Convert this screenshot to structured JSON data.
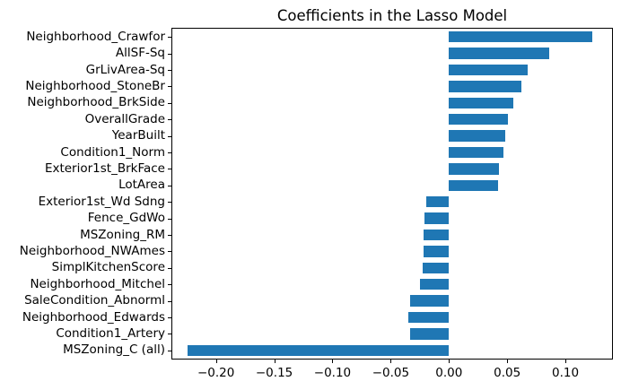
{
  "figure": {
    "background": "#ffffff"
  },
  "chart_data": {
    "type": "bar",
    "orientation": "horizontal",
    "title": "Coefficients in the Lasso Model",
    "categories": [
      "Neighborhood_Crawfor",
      "AllSF-Sq",
      "GrLivArea-Sq",
      "Neighborhood_StoneBr",
      "Neighborhood_BrkSide",
      "OverallGrade",
      "YearBuilt",
      "Condition1_Norm",
      "Exterior1st_BrkFace",
      "LotArea",
      "Exterior1st_Wd Sdng",
      "Fence_GdWo",
      "MSZoning_RM",
      "Neighborhood_NWAmes",
      "SimplKitchenScore",
      "Neighborhood_Mitchel",
      "SaleCondition_Abnorml",
      "Neighborhood_Edwards",
      "Condition1_Artery",
      "MSZoning_C (all)"
    ],
    "values": [
      0.123,
      0.086,
      0.0675,
      0.0625,
      0.0555,
      0.0505,
      0.0485,
      0.0465,
      0.0428,
      0.0422,
      -0.0192,
      -0.0207,
      -0.0215,
      -0.0215,
      -0.0222,
      -0.0245,
      -0.0337,
      -0.0345,
      -0.033,
      -0.2245
    ],
    "bar_color": "#1f77b4",
    "axis_color": "#000000",
    "xlabel": "",
    "ylabel": "",
    "xlim": [
      -0.2375,
      0.14
    ],
    "xticks": [
      -0.2,
      -0.15,
      -0.1,
      -0.05,
      0.0,
      0.05,
      0.1
    ],
    "xtick_labels": [
      "−0.20",
      "−0.15",
      "−0.10",
      "−0.05",
      "0.00",
      "0.05",
      "0.10"
    ],
    "grid": false,
    "legend_position": "none"
  }
}
